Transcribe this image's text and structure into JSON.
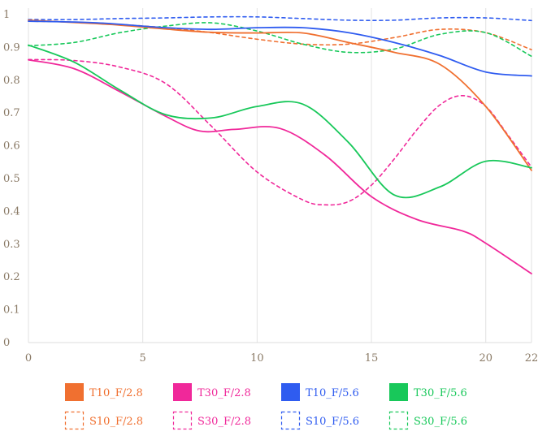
{
  "chart_data": {
    "type": "line",
    "title": "",
    "xlabel": "",
    "ylabel": "",
    "xlim": [
      0,
      22
    ],
    "ylim": [
      0,
      1
    ],
    "x_ticks": [
      0,
      5,
      10,
      15,
      20,
      22
    ],
    "x_tick_labels": [
      "0",
      "5",
      "10",
      "15",
      "20",
      "22"
    ],
    "y_ticks": [
      0,
      0.1,
      0.2,
      0.3,
      0.4,
      0.5,
      0.6,
      0.7,
      0.8,
      0.9,
      1
    ],
    "y_tick_labels": [
      "0",
      "0.1",
      "0.2",
      "0.3",
      "0.4",
      "0.5",
      "0.6",
      "0.7",
      "0.8",
      "0.9",
      "1"
    ],
    "grid": "vertical",
    "legend_position": "bottom",
    "series": [
      {
        "name": "T10_F/2.8",
        "color": "#f07030",
        "dashed": false,
        "x": [
          0,
          2,
          4,
          6,
          8,
          10,
          12,
          14,
          16,
          18,
          20,
          22
        ],
        "y": [
          0.983,
          0.976,
          0.968,
          0.956,
          0.946,
          0.944,
          0.944,
          0.915,
          0.885,
          0.848,
          0.72,
          0.525
        ]
      },
      {
        "name": "T30_F/2.8",
        "color": "#f0289a",
        "dashed": false,
        "x": [
          0,
          2,
          4,
          6,
          7.5,
          9,
          11,
          13,
          15,
          17,
          19,
          20,
          22
        ],
        "y": [
          0.862,
          0.835,
          0.765,
          0.69,
          0.645,
          0.65,
          0.653,
          0.57,
          0.445,
          0.375,
          0.34,
          0.303,
          0.21
        ]
      },
      {
        "name": "T10_F/5.6",
        "color": "#2f5cf0",
        "dashed": false,
        "x": [
          0,
          3,
          6,
          8,
          10,
          12,
          14,
          16,
          18,
          20,
          22
        ],
        "y": [
          0.98,
          0.975,
          0.96,
          0.955,
          0.96,
          0.96,
          0.945,
          0.915,
          0.875,
          0.825,
          0.813
        ]
      },
      {
        "name": "T30_F/5.6",
        "color": "#18c85a",
        "dashed": false,
        "x": [
          0,
          2,
          4,
          6,
          8,
          10,
          12,
          14,
          16,
          18,
          20,
          22
        ],
        "y": [
          0.907,
          0.855,
          0.77,
          0.695,
          0.685,
          0.72,
          0.727,
          0.61,
          0.45,
          0.475,
          0.553,
          0.533
        ]
      },
      {
        "name": "S10_F/2.8",
        "color": "#f07030",
        "dashed": true,
        "x": [
          0,
          2,
          4,
          6,
          8,
          10,
          12,
          14,
          16,
          18,
          20,
          22
        ],
        "y": [
          0.98,
          0.977,
          0.97,
          0.96,
          0.945,
          0.925,
          0.91,
          0.91,
          0.93,
          0.955,
          0.945,
          0.893
        ]
      },
      {
        "name": "S30_F/2.8",
        "color": "#f0289a",
        "dashed": true,
        "x": [
          0,
          2,
          4,
          6,
          8,
          10,
          12,
          13,
          14,
          15,
          16,
          17,
          18,
          19,
          20,
          21,
          22
        ],
        "y": [
          0.863,
          0.86,
          0.84,
          0.79,
          0.66,
          0.52,
          0.435,
          0.42,
          0.43,
          0.48,
          0.56,
          0.65,
          0.725,
          0.753,
          0.72,
          0.63,
          0.535
        ]
      },
      {
        "name": "S10_F/5.6",
        "color": "#2f5cf0",
        "dashed": true,
        "x": [
          0,
          2,
          4,
          6,
          8,
          10,
          12,
          14,
          16,
          18,
          20,
          22
        ],
        "y": [
          0.985,
          0.985,
          0.988,
          0.99,
          0.993,
          0.993,
          0.988,
          0.983,
          0.983,
          0.99,
          0.99,
          0.982
        ]
      },
      {
        "name": "S30_F/5.6",
        "color": "#18c85a",
        "dashed": true,
        "x": [
          0,
          2,
          4,
          6,
          8,
          10,
          12,
          14,
          16,
          18,
          20,
          22
        ],
        "y": [
          0.905,
          0.915,
          0.945,
          0.965,
          0.975,
          0.95,
          0.91,
          0.885,
          0.895,
          0.94,
          0.945,
          0.873
        ]
      }
    ]
  }
}
